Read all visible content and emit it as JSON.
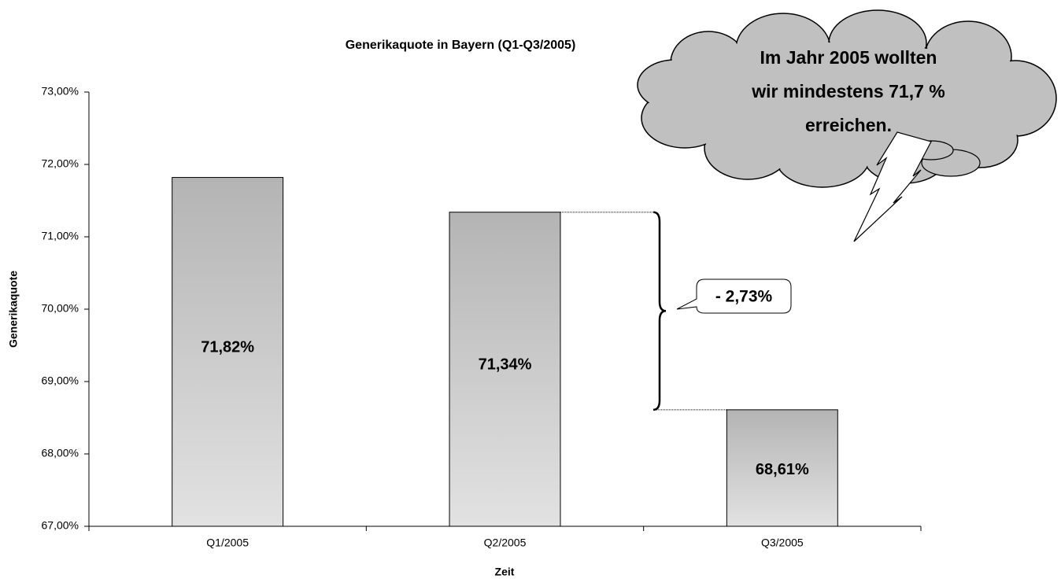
{
  "chart_data": {
    "type": "bar",
    "title": "Generikaquote in Bayern (Q1-Q3/2005)",
    "x_label": "Zeit",
    "y_label": "Generikaquote",
    "categories": [
      "Q1/2005",
      "Q2/2005",
      "Q3/2005"
    ],
    "values": [
      71.82,
      71.34,
      68.61
    ],
    "value_labels": [
      "71,82%",
      "71,34%",
      "68,61%"
    ],
    "color": "#b4b4b4",
    "ylim": [
      67,
      73
    ],
    "yticks": [
      {
        "value": 67,
        "label": "67,00%"
      },
      {
        "value": 68,
        "label": "68,00%"
      },
      {
        "value": 69,
        "label": "69,00%"
      },
      {
        "value": 70,
        "label": "70,00%"
      },
      {
        "value": 71,
        "label": "71,00%"
      },
      {
        "value": 72,
        "label": "72,00%"
      },
      {
        "value": 73,
        "label": "73,00%"
      }
    ],
    "difference_label": "- 2,73%",
    "cloud_text": [
      "Im Jahr 2005 wollten",
      "wir mindestens 71,7 %",
      "erreichen."
    ]
  }
}
